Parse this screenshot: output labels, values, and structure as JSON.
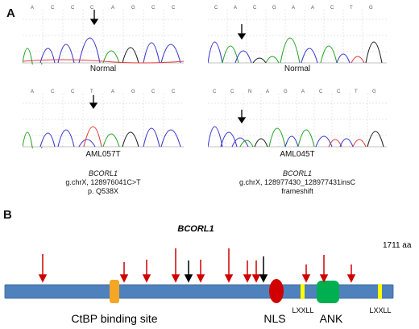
{
  "panel_a": {
    "label": "A",
    "top_left": {
      "bases": [
        "A",
        "C",
        "C",
        "C",
        "A",
        "G",
        "C",
        "C"
      ],
      "caption": "Normal"
    },
    "top_right": {
      "bases": [
        "C",
        "A",
        "C",
        "G",
        "A",
        "A",
        "C",
        "T",
        "G"
      ],
      "caption": "Normal"
    },
    "bottom_left": {
      "bases": [
        "A",
        "C",
        "C",
        "T",
        "A",
        "G",
        "C",
        "C"
      ],
      "caption": "AML057T"
    },
    "bottom_right": {
      "bases": [
        "C",
        "C",
        "N",
        "A",
        "G",
        "A",
        "C",
        "C",
        "T",
        "G"
      ],
      "caption": "AML045T"
    },
    "mutation_left": {
      "gene": "BCORL1",
      "line1": "g.chrX, 128976041C>T",
      "line2": "p. Q538X"
    },
    "mutation_right": {
      "gene": "BCORL1",
      "line1": "g.chrX, 128977430_128977431insC",
      "line2": "frameshift"
    }
  },
  "panel_b": {
    "label": "B",
    "gene": "BCORL1",
    "length": "1711 aa",
    "ctbp_label": "CtBP binding site",
    "nls_label": "NLS",
    "ank_label": "ANK",
    "lxxll_label_1": "LXXLL",
    "lxxll_label_2": "LXXLL",
    "colors": {
      "backbone": "#4f81bd",
      "ctbp": "#f5a623",
      "nls": "#d00000",
      "ank": "#00b050",
      "lxxll": "#ffff00",
      "red_arrow": "#d00000",
      "black_arrow": "#000000"
    }
  }
}
